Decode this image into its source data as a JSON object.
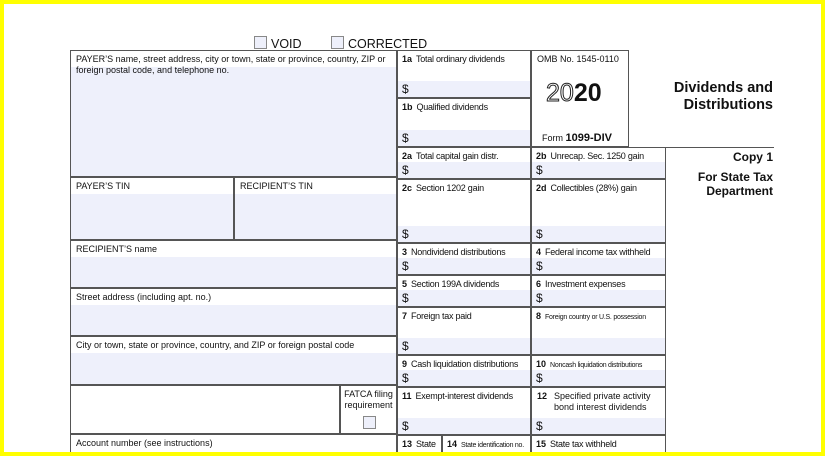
{
  "header": {
    "void": "VOID",
    "corrected": "CORRECTED"
  },
  "payer": {
    "name_label": "PAYER’S name, street address, city or town, state or province, country, ZIP or foreign postal code, and telephone no.",
    "tin_label": "PAYER’S TIN"
  },
  "recipient": {
    "tin_label": "RECIPIENT’S TIN",
    "name_label": "RECIPIENT’S name",
    "street_label": "Street address (including apt. no.)",
    "city_label": "City or town, state or province, country, and ZIP or foreign postal code"
  },
  "fatca": {
    "label": "FATCA filing requirement"
  },
  "account": {
    "label": "Account number (see instructions)"
  },
  "omb": {
    "number": "OMB No. 1545-0110",
    "year_outline": "20",
    "year_bold": "20",
    "form_prefix": "Form",
    "form_name": "1099-DIV"
  },
  "title": {
    "line1": "Dividends and",
    "line2": "Distributions"
  },
  "copy": {
    "title": "Copy 1",
    "line1": "For State Tax",
    "line2": "Department"
  },
  "currency": "$",
  "boxes": {
    "b1a": {
      "num": "1a",
      "label": "Total ordinary dividends"
    },
    "b1b": {
      "num": "1b",
      "label": "Qualified dividends"
    },
    "b2a": {
      "num": "2a",
      "label": "Total capital gain distr."
    },
    "b2b": {
      "num": "2b",
      "label": "Unrecap. Sec. 1250 gain"
    },
    "b2c": {
      "num": "2c",
      "label": "Section 1202 gain"
    },
    "b2d": {
      "num": "2d",
      "label": "Collectibles (28%) gain"
    },
    "b3": {
      "num": "3",
      "label": "Nondividend distributions"
    },
    "b4": {
      "num": "4",
      "label": "Federal income tax withheld"
    },
    "b5": {
      "num": "5",
      "label": "Section 199A dividends"
    },
    "b6": {
      "num": "6",
      "label": "Investment expenses"
    },
    "b7": {
      "num": "7",
      "label": "Foreign tax paid"
    },
    "b8": {
      "num": "8",
      "label": "Foreign country or U.S. possession"
    },
    "b9": {
      "num": "9",
      "label": "Cash liquidation distributions"
    },
    "b10": {
      "num": "10",
      "label": "Noncash liquidation distributions"
    },
    "b11": {
      "num": "11",
      "label": "Exempt-interest dividends"
    },
    "b12": {
      "num": "12",
      "label": "Specified private activity bond interest dividends"
    },
    "b13": {
      "num": "13",
      "label": "State"
    },
    "b14": {
      "num": "14",
      "label": "State identification no."
    },
    "b15": {
      "num": "15",
      "label": "State tax withheld"
    }
  }
}
